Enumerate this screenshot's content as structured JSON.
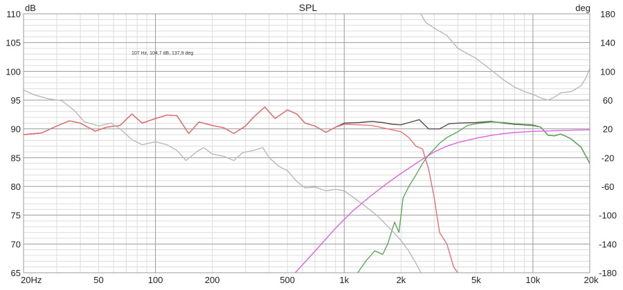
{
  "title": "SPL",
  "cursor_readout": "107 Hz, 104,7 dB, 137,9 deg",
  "colors": {
    "background": "#ffffff",
    "grid_major": "#9a9a9a",
    "grid_minor": "#dcdcdc",
    "frame": "#9a9a9a",
    "text": "#222222",
    "series_combined": "#5a4a4a",
    "series_woofer": "#e87070",
    "series_tweeter": "#5aa95a",
    "series_phase": "#b8b8b8",
    "series_magenta": "#e060e0"
  },
  "chart_data": {
    "type": "line",
    "title": "SPL",
    "x_scale": "log",
    "xlim": [
      20,
      20000
    ],
    "ylim": [
      65,
      110
    ],
    "y2lim": [
      -180,
      180
    ],
    "ylabel": "dB",
    "y2label": "deg",
    "x_ticks": [
      {
        "value": 20,
        "label": "20Hz"
      },
      {
        "value": 50,
        "label": "50"
      },
      {
        "value": 100,
        "label": "100"
      },
      {
        "value": 200,
        "label": "200"
      },
      {
        "value": 500,
        "label": "500"
      },
      {
        "value": 1000,
        "label": "1k"
      },
      {
        "value": 2000,
        "label": "2k"
      },
      {
        "value": 5000,
        "label": "5k"
      },
      {
        "value": 10000,
        "label": "10k"
      },
      {
        "value": 20000,
        "label": "20k"
      }
    ],
    "y_ticks": [
      "65",
      "70",
      "75",
      "80",
      "85",
      "90",
      "95",
      "100",
      "105",
      "110"
    ],
    "y2_ticks": [
      "-180",
      "-140",
      "-100",
      "-60",
      "-20",
      "20",
      "60",
      "100",
      "140",
      "180"
    ],
    "grid": true,
    "series": [
      {
        "color": "#5a4a4a",
        "axis": "left",
        "points": [
          [
            20,
            89
          ],
          [
            25,
            89.3
          ],
          [
            30,
            90.5
          ],
          [
            35,
            91.4
          ],
          [
            40,
            91
          ],
          [
            48,
            89.6
          ],
          [
            55,
            90.3
          ],
          [
            65,
            90.6
          ],
          [
            75,
            92.6
          ],
          [
            85,
            91
          ],
          [
            100,
            91.8
          ],
          [
            115,
            92.4
          ],
          [
            130,
            92.3
          ],
          [
            150,
            89.2
          ],
          [
            170,
            91.2
          ],
          [
            200,
            90.6
          ],
          [
            230,
            90.2
          ],
          [
            260,
            89.2
          ],
          [
            300,
            90.5
          ],
          [
            330,
            92
          ],
          [
            380,
            93.8
          ],
          [
            430,
            91.8
          ],
          [
            500,
            93.3
          ],
          [
            560,
            92.6
          ],
          [
            620,
            91
          ],
          [
            700,
            90.5
          ],
          [
            800,
            89.4
          ],
          [
            900,
            90.3
          ],
          [
            1000,
            91
          ],
          [
            1200,
            91.1
          ],
          [
            1400,
            91.3
          ],
          [
            1600,
            91.1
          ],
          [
            1800,
            90.8
          ],
          [
            2000,
            90.7
          ],
          [
            2200,
            91.1
          ],
          [
            2500,
            91.6
          ],
          [
            2800,
            90
          ],
          [
            3200,
            90
          ],
          [
            3600,
            90.9
          ],
          [
            4000,
            91
          ],
          [
            5000,
            91.1
          ],
          [
            6000,
            91.3
          ],
          [
            7000,
            91
          ],
          [
            8000,
            90.8
          ],
          [
            10000,
            90.6
          ],
          [
            11000,
            90.3
          ],
          [
            12000,
            88.9
          ],
          [
            13000,
            88.8
          ],
          [
            14000,
            89.1
          ],
          [
            15000,
            88.7
          ],
          [
            16000,
            88.2
          ],
          [
            18000,
            86.8
          ],
          [
            20000,
            84
          ]
        ]
      },
      {
        "color": "#e87070",
        "axis": "left",
        "points": [
          [
            20,
            89
          ],
          [
            25,
            89.3
          ],
          [
            30,
            90.5
          ],
          [
            35,
            91.4
          ],
          [
            40,
            91
          ],
          [
            48,
            89.6
          ],
          [
            55,
            90.3
          ],
          [
            65,
            90.6
          ],
          [
            75,
            92.6
          ],
          [
            85,
            91
          ],
          [
            100,
            91.8
          ],
          [
            115,
            92.4
          ],
          [
            130,
            92.3
          ],
          [
            150,
            89.2
          ],
          [
            170,
            91.2
          ],
          [
            200,
            90.6
          ],
          [
            230,
            90.2
          ],
          [
            260,
            89.2
          ],
          [
            300,
            90.5
          ],
          [
            330,
            92
          ],
          [
            380,
            93.8
          ],
          [
            430,
            91.8
          ],
          [
            500,
            93.3
          ],
          [
            560,
            92.6
          ],
          [
            620,
            91
          ],
          [
            700,
            90.5
          ],
          [
            800,
            89.4
          ],
          [
            900,
            90.3
          ],
          [
            1000,
            90.8
          ],
          [
            1200,
            90.7
          ],
          [
            1400,
            90.6
          ],
          [
            1700,
            90
          ],
          [
            2000,
            89.5
          ],
          [
            2200,
            88.5
          ],
          [
            2400,
            87
          ],
          [
            2600,
            86.5
          ],
          [
            2800,
            83
          ],
          [
            3000,
            78
          ],
          [
            3200,
            72
          ],
          [
            3500,
            70
          ],
          [
            3800,
            66
          ],
          [
            4000,
            65
          ]
        ]
      },
      {
        "color": "#5aa95a",
        "axis": "left",
        "points": [
          [
            1180,
            65
          ],
          [
            1300,
            67
          ],
          [
            1450,
            68.8
          ],
          [
            1600,
            68.2
          ],
          [
            1700,
            70
          ],
          [
            1850,
            73.8
          ],
          [
            1950,
            72
          ],
          [
            2050,
            78
          ],
          [
            2200,
            80
          ],
          [
            2400,
            82
          ],
          [
            2600,
            84
          ],
          [
            2800,
            85.5
          ],
          [
            3000,
            86.5
          ],
          [
            3200,
            87.5
          ],
          [
            3500,
            88.5
          ],
          [
            4000,
            89.5
          ],
          [
            4500,
            90.6
          ],
          [
            5000,
            90.9
          ],
          [
            6000,
            91.2
          ],
          [
            7000,
            91.1
          ],
          [
            8000,
            90.9
          ],
          [
            10000,
            90.7
          ],
          [
            11000,
            90.3
          ],
          [
            12000,
            88.9
          ],
          [
            13000,
            88.8
          ],
          [
            14000,
            89.1
          ],
          [
            15000,
            88.7
          ],
          [
            16000,
            88.2
          ],
          [
            18000,
            86.8
          ],
          [
            20000,
            84
          ]
        ]
      },
      {
        "color": "#b8b8b8",
        "axis": "right",
        "points": [
          [
            20,
            74
          ],
          [
            23,
            67
          ],
          [
            27,
            62
          ],
          [
            32,
            59
          ],
          [
            37,
            46
          ],
          [
            42,
            30
          ],
          [
            50,
            24
          ],
          [
            58,
            28
          ],
          [
            65,
            20
          ],
          [
            75,
            5
          ],
          [
            85,
            -2
          ],
          [
            100,
            2
          ],
          [
            115,
            -2
          ],
          [
            130,
            -10
          ],
          [
            145,
            -24
          ],
          [
            165,
            -12
          ],
          [
            180,
            -6
          ],
          [
            200,
            -15
          ],
          [
            230,
            -18
          ],
          [
            260,
            -24
          ],
          [
            290,
            -13
          ],
          [
            330,
            -10
          ],
          [
            370,
            -6
          ],
          [
            400,
            -20
          ],
          [
            450,
            -32
          ],
          [
            500,
            -38
          ],
          [
            560,
            -53
          ],
          [
            620,
            -62
          ],
          [
            700,
            -61
          ],
          [
            800,
            -66
          ],
          [
            900,
            -64
          ],
          [
            1000,
            -66
          ],
          [
            1100,
            -74
          ],
          [
            1300,
            -88
          ],
          [
            1500,
            -101
          ],
          [
            1800,
            -122
          ],
          [
            2000,
            -135
          ],
          [
            2200,
            -150
          ],
          [
            2400,
            -167
          ],
          [
            2550,
            -180
          ],
          [
            2550,
            180
          ],
          [
            2700,
            168
          ],
          [
            3000,
            160
          ],
          [
            3500,
            150
          ],
          [
            4000,
            132
          ],
          [
            5000,
            118
          ],
          [
            6000,
            102
          ],
          [
            7000,
            88
          ],
          [
            8000,
            78
          ],
          [
            9000,
            72
          ],
          [
            10000,
            68
          ],
          [
            11000,
            63
          ],
          [
            12000,
            60
          ],
          [
            13000,
            64
          ],
          [
            14000,
            70
          ],
          [
            16000,
            72
          ],
          [
            18000,
            80
          ],
          [
            19000,
            90
          ],
          [
            20000,
            104
          ]
        ]
      },
      {
        "color": "#e060e0",
        "axis": "right",
        "points": [
          [
            550,
            -180
          ],
          [
            700,
            -150
          ],
          [
            900,
            -118
          ],
          [
            1100,
            -95
          ],
          [
            1400,
            -72
          ],
          [
            1700,
            -55
          ],
          [
            2000,
            -42
          ],
          [
            2500,
            -25
          ],
          [
            3000,
            -12
          ],
          [
            3500,
            -4
          ],
          [
            4000,
            1
          ],
          [
            5000,
            7
          ],
          [
            6000,
            11
          ],
          [
            7000,
            13.5
          ],
          [
            8000,
            15
          ],
          [
            10000,
            16.5
          ],
          [
            13000,
            17.5
          ],
          [
            16000,
            18.2
          ],
          [
            20000,
            18.8
          ]
        ]
      }
    ]
  }
}
